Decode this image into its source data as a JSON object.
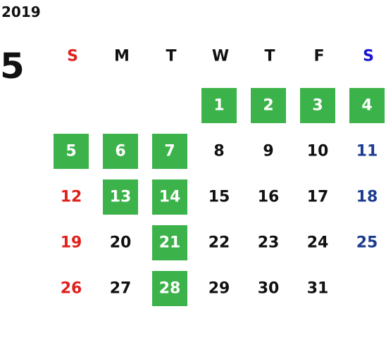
{
  "year": "2019",
  "month": "5",
  "weekdays": [
    "S",
    "M",
    "T",
    "W",
    "T",
    "F",
    "S"
  ],
  "colors": {
    "sunday": "#e0201c",
    "saturday_header": "#1414d2",
    "saturday": "#1c3c8e",
    "weekday": "#111111",
    "highlight": "#3cb34a",
    "highlight_text": "#ffffff"
  },
  "weeks": [
    [
      null,
      null,
      null,
      {
        "day": "1",
        "highlight": true
      },
      {
        "day": "2",
        "highlight": true
      },
      {
        "day": "3",
        "highlight": true
      },
      {
        "day": "4",
        "highlight": true
      }
    ],
    [
      {
        "day": "5",
        "highlight": true
      },
      {
        "day": "6",
        "highlight": true
      },
      {
        "day": "7",
        "highlight": true
      },
      {
        "day": "8",
        "highlight": false
      },
      {
        "day": "9",
        "highlight": false
      },
      {
        "day": "10",
        "highlight": false
      },
      {
        "day": "11",
        "highlight": false
      }
    ],
    [
      {
        "day": "12",
        "highlight": false
      },
      {
        "day": "13",
        "highlight": true
      },
      {
        "day": "14",
        "highlight": true
      },
      {
        "day": "15",
        "highlight": false
      },
      {
        "day": "16",
        "highlight": false
      },
      {
        "day": "17",
        "highlight": false
      },
      {
        "day": "18",
        "highlight": false
      }
    ],
    [
      {
        "day": "19",
        "highlight": false
      },
      {
        "day": "20",
        "highlight": false
      },
      {
        "day": "21",
        "highlight": true
      },
      {
        "day": "22",
        "highlight": false
      },
      {
        "day": "23",
        "highlight": false
      },
      {
        "day": "24",
        "highlight": false
      },
      {
        "day": "25",
        "highlight": false
      }
    ],
    [
      {
        "day": "26",
        "highlight": false
      },
      {
        "day": "27",
        "highlight": false
      },
      {
        "day": "28",
        "highlight": true
      },
      {
        "day": "29",
        "highlight": false
      },
      {
        "day": "30",
        "highlight": false
      },
      {
        "day": "31",
        "highlight": false
      },
      null
    ]
  ]
}
